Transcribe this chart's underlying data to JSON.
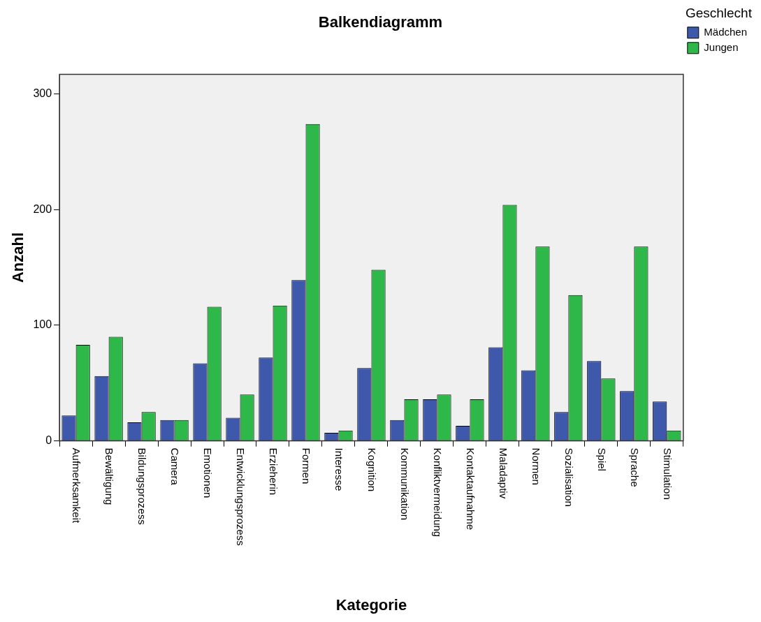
{
  "chart_data": {
    "type": "bar",
    "title": "Balkendiagramm",
    "xlabel": "Kategorie",
    "ylabel": "Anzahl",
    "legend_title": "Geschlecht",
    "categories": [
      "Aufmerksamkeit",
      "Bewältigung",
      "Bildungsprozess",
      "Camera",
      "Emotionen",
      "Entwicklungsprozess",
      "Erzieherin",
      "Formen",
      "Interesse",
      "Kognition",
      "Kommunikation",
      "Konfliktvermeidung",
      "Kontaktaufnahme",
      "Maladaptiv",
      "Normen",
      "Sozialisation",
      "Spiel",
      "Sprache",
      "Stimulation"
    ],
    "series": [
      {
        "name": "Mädchen",
        "color": "#3e58ac",
        "values": [
          22,
          56,
          16,
          18,
          67,
          20,
          72,
          139,
          7,
          63,
          18,
          36,
          13,
          81,
          61,
          25,
          69,
          43,
          34
        ]
      },
      {
        "name": "Jungen",
        "color": "#2fb84a",
        "values": [
          83,
          90,
          25,
          18,
          116,
          40,
          117,
          274,
          9,
          148,
          36,
          40,
          36,
          204,
          168,
          126,
          54,
          168,
          9
        ]
      }
    ],
    "ylim": [
      0,
      317
    ],
    "yticks": [
      0,
      100,
      200,
      300
    ],
    "grid": false,
    "legend": "top right"
  }
}
